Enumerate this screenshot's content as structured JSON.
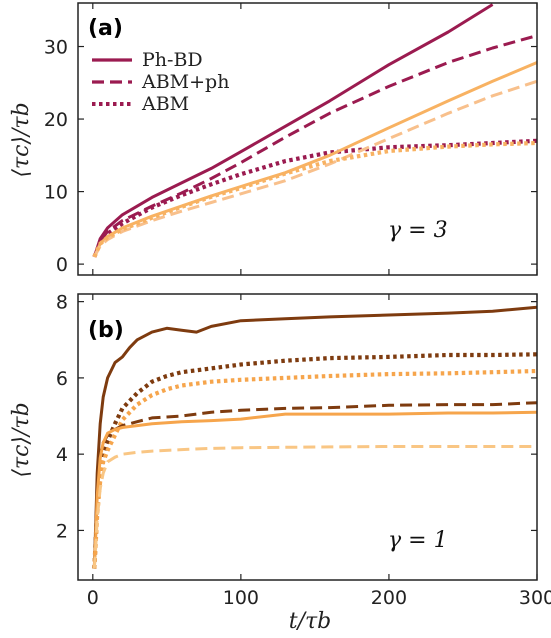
{
  "colors": {
    "top_dark": "#9b1b50",
    "top_light": "#f8b262",
    "top_lighter": "#f8c08c",
    "bot_dark": "#7e3b0f",
    "bot_mid": "#f6a54c",
    "bot_light": "#f9c684"
  },
  "chart_data": [
    {
      "panel": "(a)",
      "type": "line",
      "xlabel": "",
      "ylabel": "⟨τc⟩/τb",
      "xlim": [
        -10,
        300
      ],
      "ylim": [
        -1.5,
        36
      ],
      "yticks": [
        "0",
        "10",
        "20",
        "30"
      ],
      "annotation": "γ = 3",
      "legend": [
        {
          "label": "Ph-BD",
          "style": "solid"
        },
        {
          "label": "ABM+ph",
          "style": "dashed"
        },
        {
          "label": "ABM",
          "style": "dotted"
        }
      ],
      "series": [
        {
          "group": "dark",
          "style": "solid",
          "x": [
            1,
            5,
            10,
            20,
            40,
            60,
            80,
            100,
            130,
            160,
            200,
            240,
            270
          ],
          "y": [
            1,
            3.5,
            5,
            6.8,
            9.2,
            11.2,
            13.2,
            15.5,
            19,
            22.5,
            27.5,
            32,
            35.8
          ]
        },
        {
          "group": "dark",
          "style": "dashed",
          "x": [
            1,
            5,
            10,
            20,
            40,
            60,
            80,
            100,
            130,
            160,
            200,
            240,
            270,
            300
          ],
          "y": [
            1,
            3.2,
            4.5,
            6,
            8,
            9.8,
            11.8,
            14,
            17.5,
            20.8,
            24.5,
            27.8,
            29.8,
            31.5
          ]
        },
        {
          "group": "dark",
          "style": "dotted",
          "x": [
            1,
            5,
            10,
            20,
            40,
            60,
            80,
            100,
            130,
            160,
            200,
            240,
            270,
            300
          ],
          "y": [
            1,
            3,
            4.2,
            5.6,
            7.8,
            9.5,
            11,
            12.4,
            14.2,
            15.4,
            16.1,
            16.4,
            16.7,
            17
          ]
        },
        {
          "group": "light",
          "style": "solid",
          "x": [
            1,
            5,
            10,
            20,
            40,
            60,
            80,
            100,
            130,
            160,
            200,
            240,
            270,
            300
          ],
          "y": [
            1,
            2.8,
            3.8,
            5,
            6.6,
            8,
            9.4,
            10.7,
            12.6,
            15,
            18.8,
            22.5,
            25.2,
            27.8
          ]
        },
        {
          "group": "lighter",
          "style": "dashed",
          "x": [
            1,
            5,
            10,
            20,
            40,
            60,
            80,
            100,
            130,
            160,
            200,
            240,
            270,
            300
          ],
          "y": [
            1,
            2.5,
            3.4,
            4.5,
            6,
            7.3,
            8.5,
            9.7,
            11.5,
            13.8,
            17.3,
            20.8,
            23.2,
            25.2
          ]
        },
        {
          "group": "light",
          "style": "dotted",
          "x": [
            1,
            5,
            10,
            20,
            40,
            60,
            80,
            100,
            130,
            160,
            200,
            240,
            270,
            300
          ],
          "y": [
            1,
            2.8,
            3.7,
            4.8,
            6.4,
            7.9,
            9.3,
            10.5,
            12.5,
            14.2,
            15.6,
            16.2,
            16.5,
            16.7
          ]
        }
      ]
    },
    {
      "panel": "(b)",
      "type": "line",
      "xlabel": "t/τb",
      "ylabel": "⟨τc⟩/τb",
      "xlim": [
        -10,
        300
      ],
      "ylim": [
        0.7,
        8.2
      ],
      "xticks": [
        "0",
        "100",
        "200",
        "300"
      ],
      "yticks": [
        "2",
        "4",
        "6",
        "8"
      ],
      "annotation": "γ = 1",
      "series": [
        {
          "group": "bot_dark",
          "style": "solid",
          "x": [
            1,
            2,
            3,
            5,
            7,
            10,
            15,
            20,
            25,
            30,
            40,
            50,
            60,
            70,
            80,
            100,
            130,
            160,
            200,
            240,
            270,
            300
          ],
          "y": [
            1,
            2.2,
            3.5,
            4.8,
            5.5,
            6,
            6.4,
            6.55,
            6.8,
            7,
            7.2,
            7.3,
            7.25,
            7.2,
            7.35,
            7.5,
            7.55,
            7.6,
            7.65,
            7.7,
            7.75,
            7.85
          ]
        },
        {
          "group": "bot_dark",
          "style": "dotted",
          "x": [
            1,
            2,
            3,
            5,
            7,
            10,
            15,
            20,
            30,
            40,
            50,
            60,
            80,
            100,
            130,
            160,
            200,
            240,
            270,
            300
          ],
          "y": [
            1,
            1.8,
            2.6,
            3.5,
            4,
            4.35,
            4.8,
            5.2,
            5.6,
            5.9,
            6.05,
            6.15,
            6.25,
            6.35,
            6.45,
            6.52,
            6.55,
            6.6,
            6.6,
            6.62
          ]
        },
        {
          "group": "bot_mid",
          "style": "dotted",
          "x": [
            1,
            2,
            3,
            5,
            7,
            10,
            15,
            20,
            30,
            40,
            50,
            60,
            80,
            100,
            130,
            160,
            200,
            240,
            270,
            300
          ],
          "y": [
            1,
            1.7,
            2.4,
            3.3,
            3.8,
            4.1,
            4.5,
            4.9,
            5.3,
            5.55,
            5.7,
            5.8,
            5.9,
            5.95,
            6,
            6.05,
            6.1,
            6.12,
            6.15,
            6.18
          ]
        },
        {
          "group": "bot_dark",
          "style": "dashed",
          "x": [
            1,
            2,
            3,
            5,
            7,
            10,
            15,
            20,
            30,
            40,
            60,
            80,
            100,
            130,
            160,
            200,
            240,
            270,
            300
          ],
          "y": [
            1,
            2,
            3,
            4,
            4.3,
            4.5,
            4.65,
            4.75,
            4.85,
            4.95,
            5,
            5.1,
            5.15,
            5.2,
            5.22,
            5.28,
            5.3,
            5.3,
            5.35
          ]
        },
        {
          "group": "bot_mid",
          "style": "solid",
          "x": [
            1,
            2,
            3,
            5,
            7,
            10,
            15,
            20,
            30,
            40,
            60,
            80,
            100,
            130,
            160,
            200,
            240,
            270,
            300
          ],
          "y": [
            1,
            1.9,
            2.9,
            3.9,
            4.3,
            4.55,
            4.65,
            4.7,
            4.75,
            4.8,
            4.85,
            4.88,
            4.92,
            5.05,
            5.05,
            5.05,
            5.08,
            5.08,
            5.1
          ]
        },
        {
          "group": "bot_light",
          "style": "dashed",
          "x": [
            1,
            2,
            3,
            5,
            7,
            10,
            15,
            20,
            30,
            40,
            60,
            80,
            100,
            130,
            160,
            200,
            240,
            270,
            300
          ],
          "y": [
            1,
            1.6,
            2.3,
            3.1,
            3.5,
            3.8,
            3.92,
            4,
            4.05,
            4.08,
            4.12,
            4.15,
            4.17,
            4.18,
            4.19,
            4.2,
            4.2,
            4.2,
            4.2
          ]
        }
      ]
    }
  ]
}
